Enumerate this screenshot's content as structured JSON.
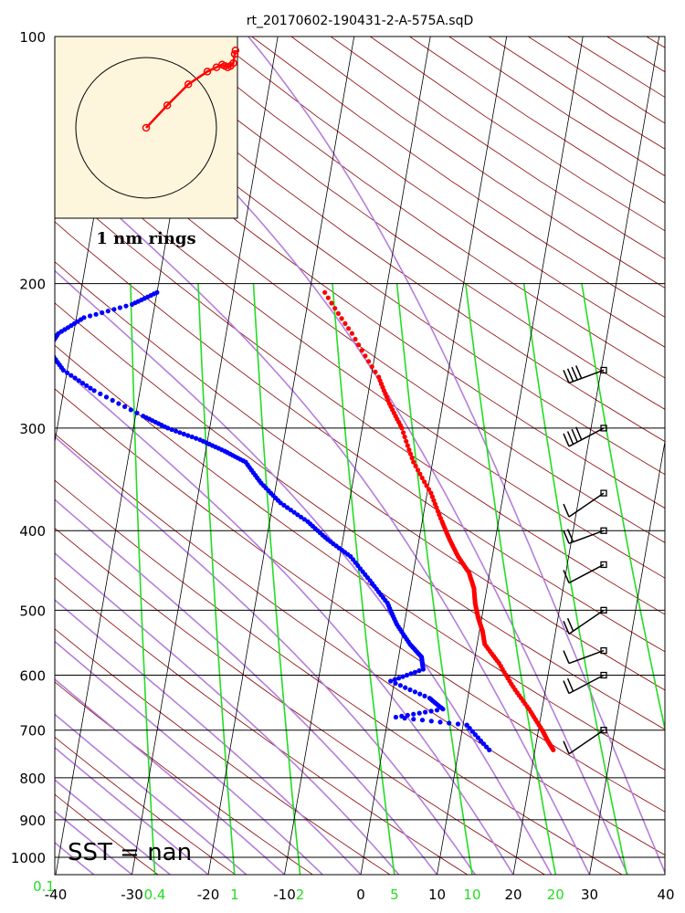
{
  "chart_data": {
    "type": "skew-t",
    "title": "rt_20170602-190431-2-A-575A.sqD",
    "annotation": "SST =  nan",
    "colors": {
      "temperature": "#ff0000",
      "dewpoint": "#0000ff",
      "dry_adiabats": "#8b0000",
      "moist_adiabats": "#b57edc",
      "mixing_ratio": "#22dd22",
      "isotherms": "#000000",
      "inset_background": "#fdf5dc"
    },
    "pressure_ticks": [
      100,
      200,
      300,
      400,
      500,
      600,
      700,
      800,
      900,
      1000
    ],
    "temperature_ticks": [
      -40,
      -30,
      -20,
      -10,
      0,
      10,
      20,
      30,
      40
    ],
    "mixing_ratio_ticks": [
      "0.1",
      "0.4",
      "1",
      "2",
      "5",
      "10",
      "20"
    ],
    "ylim": [
      1050,
      100
    ],
    "xlim": [
      -40,
      40
    ],
    "temperature": [
      [
        205,
        -18.0
      ],
      [
        230,
        -13.5
      ],
      [
        260,
        -9.0
      ],
      [
        280,
        -7.0
      ],
      [
        300,
        -4.8
      ],
      [
        330,
        -2.5
      ],
      [
        360,
        0.5
      ],
      [
        390,
        2.6
      ],
      [
        410,
        4.0
      ],
      [
        430,
        5.5
      ],
      [
        450,
        7.3
      ],
      [
        470,
        8.3
      ],
      [
        490,
        8.8
      ],
      [
        510,
        9.5
      ],
      [
        530,
        10.4
      ],
      [
        550,
        11.0
      ],
      [
        580,
        13.3
      ],
      [
        620,
        15.7
      ],
      [
        660,
        18.3
      ],
      [
        700,
        20.5
      ],
      [
        720,
        21.4
      ],
      [
        740,
        22.4
      ]
    ],
    "dewpoint": [
      [
        205,
        -40.0
      ],
      [
        212,
        -43.0
      ],
      [
        220,
        -49.0
      ],
      [
        230,
        -52.0
      ],
      [
        240,
        -53.0
      ],
      [
        255,
        -50.5
      ],
      [
        270,
        -46.0
      ],
      [
        290,
        -39.0
      ],
      [
        300,
        -35.5
      ],
      [
        310,
        -31.0
      ],
      [
        320,
        -27.5
      ],
      [
        330,
        -24.5
      ],
      [
        350,
        -22.0
      ],
      [
        370,
        -19.0
      ],
      [
        390,
        -15.0
      ],
      [
        410,
        -12.0
      ],
      [
        430,
        -8.6
      ],
      [
        460,
        -5.5
      ],
      [
        490,
        -2.7
      ],
      [
        520,
        -1.0
      ],
      [
        550,
        1.2
      ],
      [
        570,
        3.0
      ],
      [
        590,
        3.5
      ],
      [
        610,
        -0.5
      ],
      [
        640,
        5.0
      ],
      [
        660,
        7.0
      ],
      [
        675,
        1.0
      ],
      [
        690,
        10.5
      ],
      [
        740,
        14.0
      ]
    ],
    "wind_pressures": [
      255,
      300,
      360,
      400,
      440,
      500,
      560,
      600,
      700
    ],
    "hodograph": {
      "label": "1 nm rings",
      "points": [
        [
          0,
          0
        ],
        [
          0.3,
          0.32
        ],
        [
          0.6,
          0.62
        ],
        [
          0.87,
          0.8
        ],
        [
          1.0,
          0.86
        ],
        [
          1.08,
          0.9
        ],
        [
          1.12,
          0.88
        ],
        [
          1.16,
          0.86
        ],
        [
          1.2,
          0.88
        ],
        [
          1.24,
          0.92
        ],
        [
          1.26,
          1.05
        ],
        [
          1.27,
          1.1
        ]
      ]
    }
  }
}
